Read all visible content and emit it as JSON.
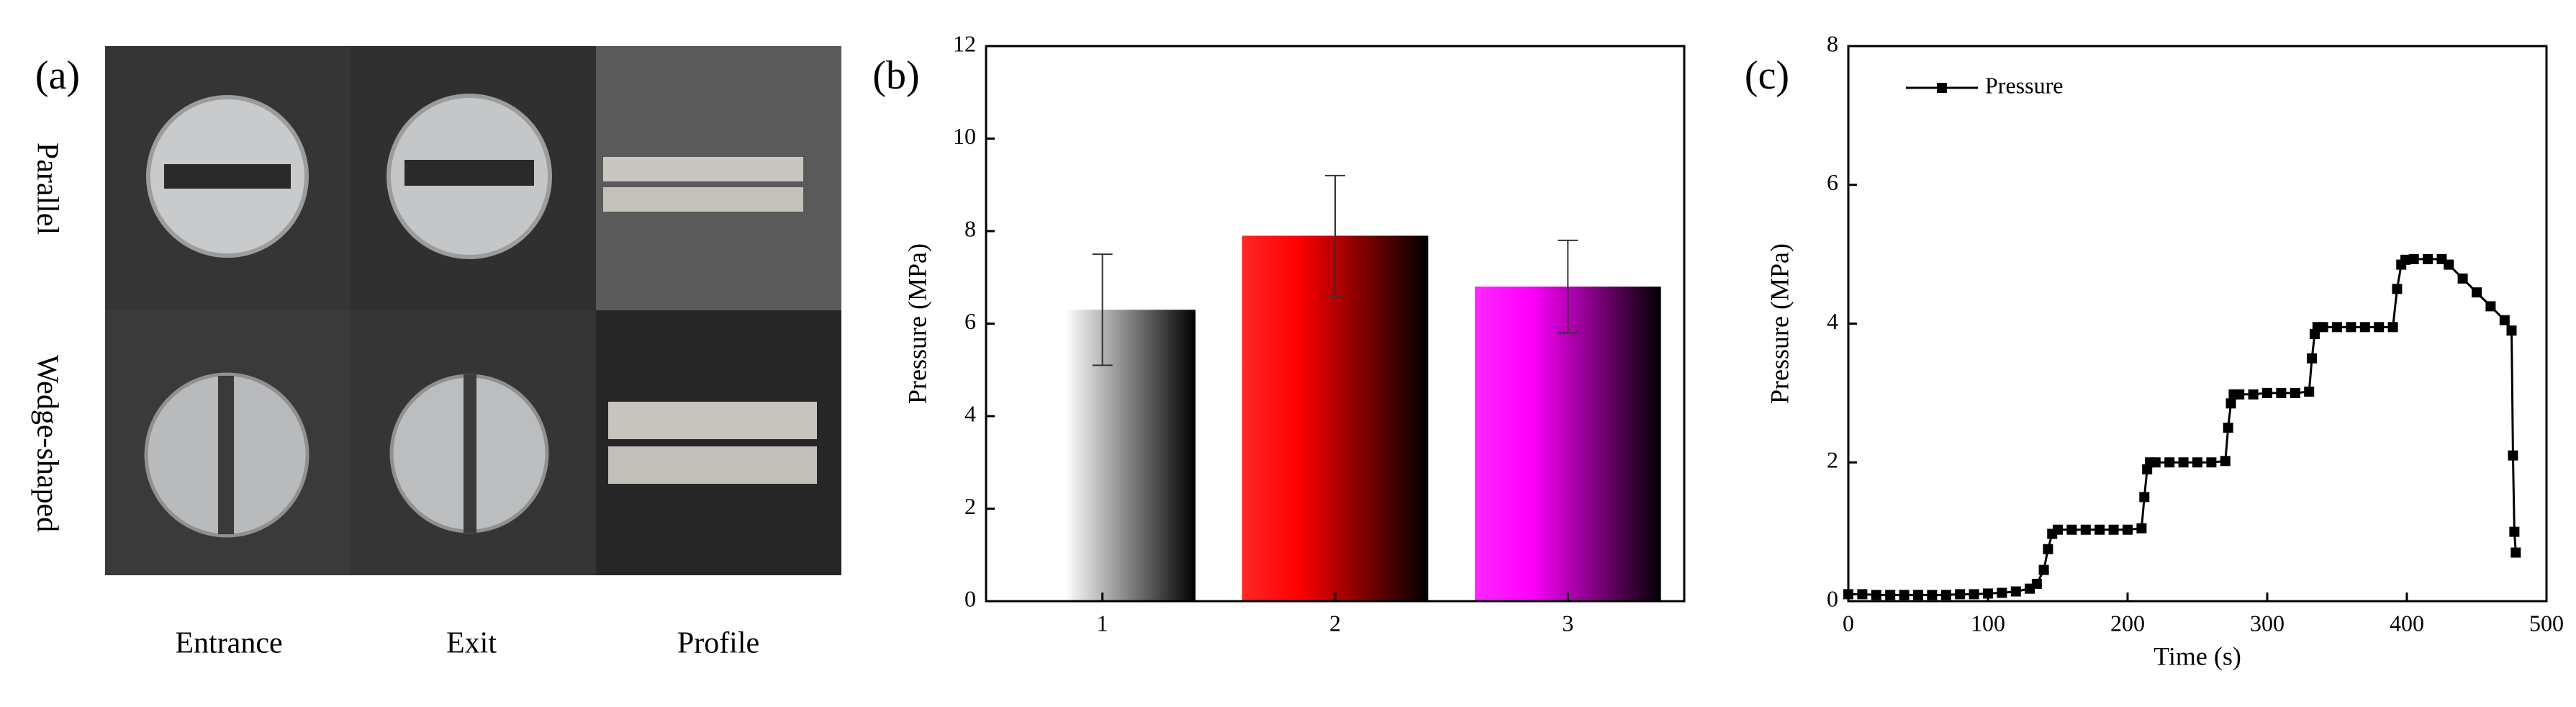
{
  "panel_a": {
    "label": "(a)",
    "row_labels": [
      "Parallel",
      "Wedge-shaped"
    ],
    "column_labels": [
      "Entrance",
      "Exit",
      "Profile"
    ]
  },
  "chart_data": [
    {
      "type": "bar",
      "label": "(b)",
      "ylabel": "Pressure (MPa)",
      "categories": [
        "1",
        "2",
        "3"
      ],
      "values": [
        6.3,
        7.9,
        6.8
      ],
      "errors": [
        1.2,
        1.3,
        1.0
      ],
      "colors": [
        "#ffffff",
        "#ff0000",
        "#ff00ff"
      ],
      "ylim": [
        0,
        12
      ],
      "yticks": [
        0,
        2,
        4,
        6,
        8,
        10,
        12
      ]
    },
    {
      "type": "line",
      "label": "(c)",
      "xlabel": "Time (s)",
      "ylabel": "Pressure (MPa)",
      "xlim": [
        0,
        500
      ],
      "xticks": [
        0,
        100,
        200,
        300,
        400,
        500
      ],
      "ylim": [
        0,
        8
      ],
      "yticks": [
        0,
        2,
        4,
        6,
        8
      ],
      "legend": "upper left",
      "x": [
        0,
        10,
        20,
        30,
        40,
        50,
        60,
        70,
        80,
        90,
        100,
        110,
        120,
        130,
        135,
        140,
        143,
        146,
        150,
        160,
        170,
        180,
        190,
        200,
        210,
        212,
        214,
        216,
        220,
        230,
        240,
        250,
        260,
        270,
        272,
        274,
        276,
        280,
        290,
        300,
        310,
        320,
        330,
        332,
        334,
        336,
        340,
        350,
        360,
        370,
        380,
        390,
        393,
        396,
        399,
        405,
        415,
        425,
        430,
        440,
        450,
        460,
        470,
        475,
        476,
        477,
        478
      ],
      "series": [
        {
          "name": "Pressure",
          "color": "#000000",
          "values": [
            0.1,
            0.1,
            0.09,
            0.09,
            0.09,
            0.09,
            0.09,
            0.09,
            0.1,
            0.1,
            0.11,
            0.12,
            0.14,
            0.18,
            0.25,
            0.45,
            0.75,
            0.97,
            1.03,
            1.03,
            1.03,
            1.03,
            1.03,
            1.03,
            1.05,
            1.5,
            1.9,
            2.0,
            2.0,
            2.0,
            2.0,
            2.0,
            2.0,
            2.02,
            2.5,
            2.85,
            2.98,
            2.98,
            2.98,
            3.0,
            3.0,
            3.0,
            3.02,
            3.5,
            3.85,
            3.95,
            3.95,
            3.95,
            3.95,
            3.95,
            3.95,
            3.95,
            4.5,
            4.85,
            4.92,
            4.93,
            4.93,
            4.93,
            4.85,
            4.65,
            4.45,
            4.25,
            4.05,
            3.9,
            2.1,
            1.0,
            0.7
          ]
        }
      ]
    }
  ]
}
